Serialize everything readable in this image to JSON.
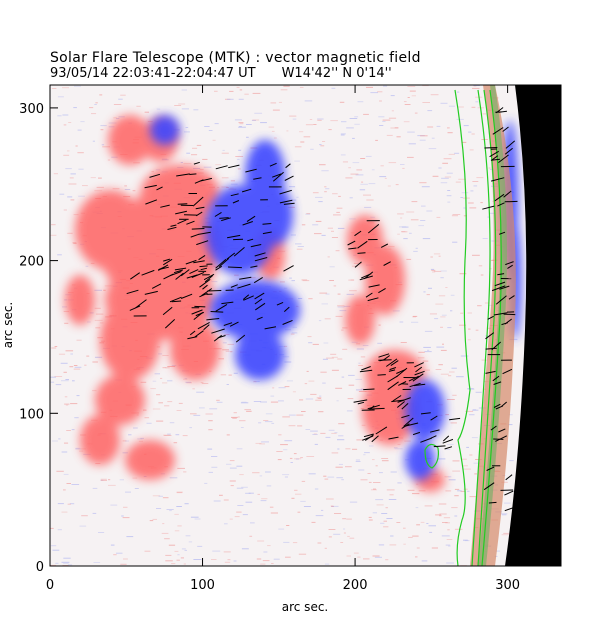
{
  "header": {
    "title": "Solar Flare Telescope (MTK) : vector magnetic field",
    "date_time": "93/05/14  22:03:41-22:04:47 UT",
    "position": "W14'42''  N 0'14''"
  },
  "map_data": {
    "type": "heatmap",
    "xlabel": "arc sec.",
    "ylabel": "arc sec.",
    "xlim": [
      0,
      335
    ],
    "ylim": [
      0,
      315
    ],
    "x_ticks": [
      0,
      100,
      200,
      300
    ],
    "y_ticks": [
      0,
      100,
      200,
      300
    ],
    "colors": {
      "positive_polarity": "#ff5555",
      "negative_polarity": "#3b46ff",
      "contour": "#22cc22",
      "limb_background": "#000000",
      "vectors": "#000000"
    }
  }
}
